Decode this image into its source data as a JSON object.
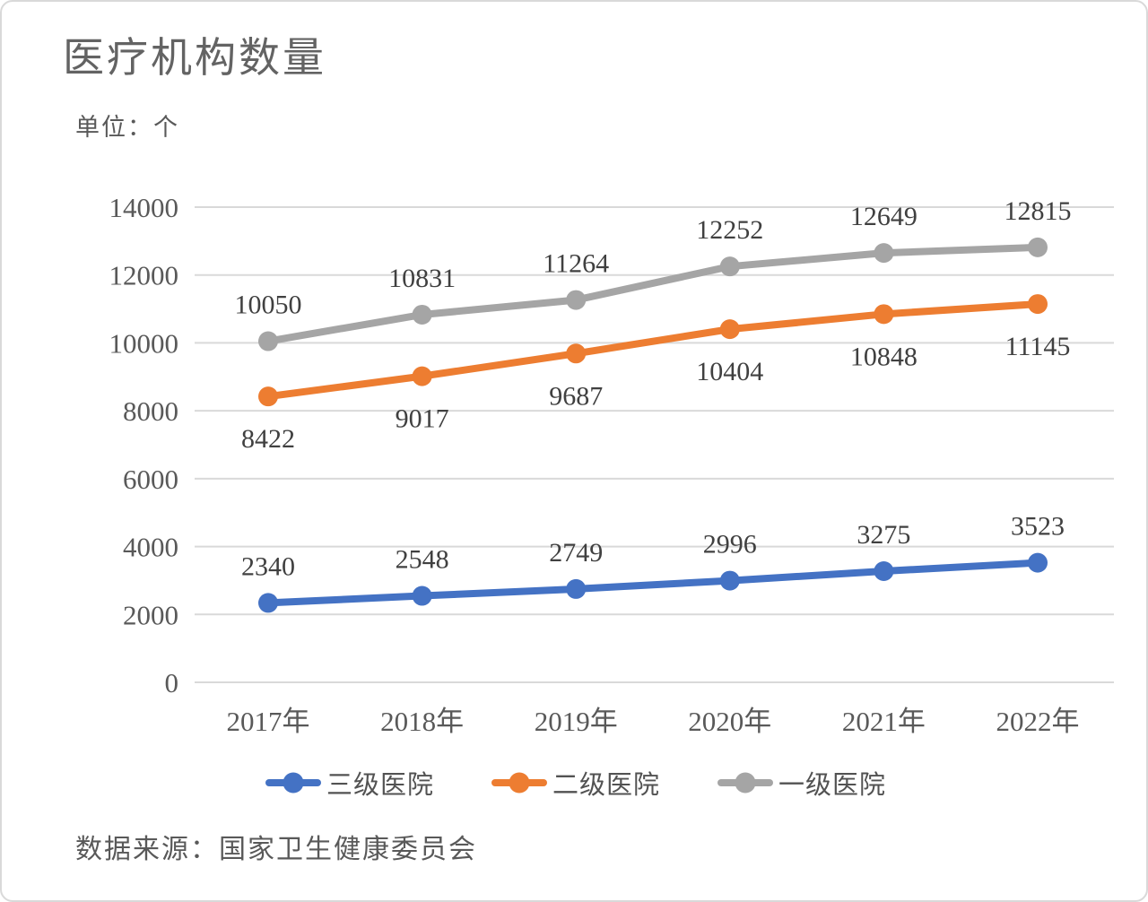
{
  "chart_data": {
    "type": "line",
    "title": "医疗机构数量",
    "unit_label": "单位：个",
    "source": "数据来源：国家卫生健康委员会",
    "categories": [
      "2017年",
      "2018年",
      "2019年",
      "2020年",
      "2021年",
      "2022年"
    ],
    "series": [
      {
        "name": "三级医院",
        "color": "#4472C4",
        "label_position": "above",
        "values": [
          2340,
          2548,
          2749,
          2996,
          3275,
          3523
        ]
      },
      {
        "name": "二级医院",
        "color": "#ED7D31",
        "label_position": "below",
        "values": [
          8422,
          9017,
          9687,
          10404,
          10848,
          11145
        ]
      },
      {
        "name": "一级医院",
        "color": "#A5A5A5",
        "label_position": "above",
        "values": [
          10050,
          10831,
          11264,
          12252,
          12649,
          12815
        ]
      }
    ],
    "ylim": [
      0,
      14000
    ],
    "ytick_step": 2000,
    "yticks": [
      0,
      2000,
      4000,
      6000,
      8000,
      10000,
      12000,
      14000
    ],
    "grid": true,
    "legend_position": "bottom",
    "colors": {
      "grid_line": "#D9D9D9",
      "axis_text": "#595959",
      "data_label": "#404040",
      "title_text": "#636363"
    }
  }
}
